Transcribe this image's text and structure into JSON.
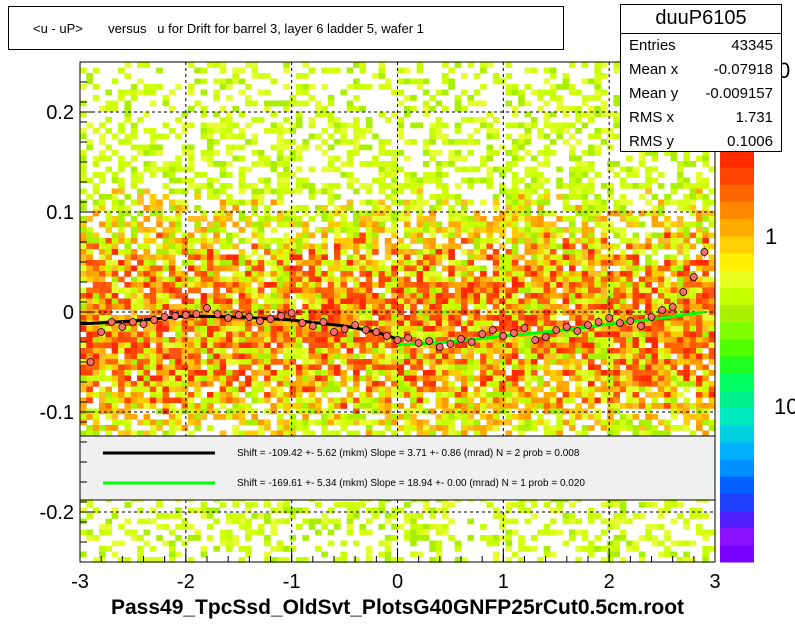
{
  "title": "<u - uP>       versus   u for Drift for barrel 3, layer 6 ladder 5, wafer 1",
  "footer": "Pass49_TpcSsd_OldSvt_PlotsG40GNFP25rCut0.5cm.root",
  "stats": {
    "name": "duuP6105",
    "rows": [
      {
        "key": "Entries",
        "value": "43345"
      },
      {
        "key": "Mean x",
        "value": "-0.07918"
      },
      {
        "key": "Mean y",
        "value": "-0.009157"
      },
      {
        "key": "RMS x",
        "value": "1.731"
      },
      {
        "key": "RMS y",
        "value": "0.1006"
      }
    ]
  },
  "colors": {
    "fit_black": "#000000",
    "fit_green": "#00ff00",
    "points": "#ff6b6b",
    "heat_low": "#c8ff00",
    "heat_mid": "#ffaa00",
    "heat_high": "#ff2a00"
  },
  "chart_data": {
    "type": "heatmap",
    "title": "<u - uP>       versus   u for Drift for barrel 3, layer 6 ladder 5, wafer 1",
    "xlim": [
      -3,
      3
    ],
    "ylim": [
      -0.25,
      0.25
    ],
    "x_ticks": [
      "-3",
      "-2",
      "-1",
      "0",
      "1",
      "2",
      "3"
    ],
    "y_ticks": [
      "-0.2",
      "-0.1",
      "0",
      "0.1",
      "0.2"
    ],
    "grid": true,
    "palette_labels": [
      "10",
      "1",
      "0"
    ],
    "legend": [
      {
        "color": "#000000",
        "text": "Shift =  -109.42 +- 5.62 (mkm) Slope =     3.71 +- 0.86 (mrad)  N = 2 prob = 0.008"
      },
      {
        "color": "#00ff00",
        "text": "Shift =  -169.61 +- 5.34 (mkm) Slope =    18.94 +- 0.00 (mrad)  N = 1 prob = 0.020"
      }
    ],
    "profile": {
      "x": [
        -2.9,
        -2.8,
        -2.7,
        -2.6,
        -2.5,
        -2.4,
        -2.3,
        -2.2,
        -2.1,
        -2.0,
        -1.9,
        -1.8,
        -1.7,
        -1.6,
        -1.5,
        -1.4,
        -1.3,
        -1.2,
        -1.1,
        -1.0,
        -0.9,
        -0.8,
        -0.7,
        -0.6,
        -0.5,
        -0.4,
        -0.3,
        -0.2,
        -0.1,
        0.0,
        0.1,
        0.2,
        0.3,
        0.4,
        0.5,
        0.6,
        0.7,
        0.8,
        0.9,
        1.0,
        1.1,
        1.2,
        1.3,
        1.4,
        1.5,
        1.6,
        1.7,
        1.8,
        1.9,
        2.0,
        2.1,
        2.2,
        2.3,
        2.4,
        2.5,
        2.6,
        2.7,
        2.8,
        2.9
      ],
      "y": [
        -0.05,
        -0.02,
        -0.01,
        -0.015,
        -0.01,
        -0.012,
        -0.008,
        -0.005,
        -0.004,
        -0.003,
        -0.002,
        0.004,
        -0.002,
        -0.006,
        -0.003,
        -0.005,
        -0.009,
        -0.007,
        -0.004,
        -0.001,
        -0.011,
        -0.014,
        -0.01,
        -0.02,
        -0.017,
        -0.013,
        -0.018,
        -0.02,
        -0.024,
        -0.028,
        -0.026,
        -0.031,
        -0.029,
        -0.035,
        -0.032,
        -0.027,
        -0.03,
        -0.022,
        -0.018,
        -0.024,
        -0.021,
        -0.016,
        -0.028,
        -0.025,
        -0.018,
        -0.015,
        -0.019,
        -0.013,
        -0.01,
        -0.006,
        -0.011,
        -0.009,
        -0.014,
        -0.005,
        0.002,
        0.005,
        0.02,
        0.035,
        0.06
      ]
    },
    "fit_black": {
      "x": [
        -3,
        -2.5,
        -2,
        -1.5,
        -1,
        -0.5,
        -0.2,
        0
      ],
      "y": [
        -0.012,
        -0.009,
        -0.004,
        -0.005,
        -0.008,
        -0.014,
        -0.02,
        -0.027
      ]
    },
    "fit_green": {
      "x": [
        0,
        0.5,
        1,
        1.5,
        2,
        2.5,
        2.9
      ],
      "y": [
        -0.033,
        -0.03,
        -0.024,
        -0.019,
        -0.012,
        -0.006,
        0.0
      ]
    }
  }
}
